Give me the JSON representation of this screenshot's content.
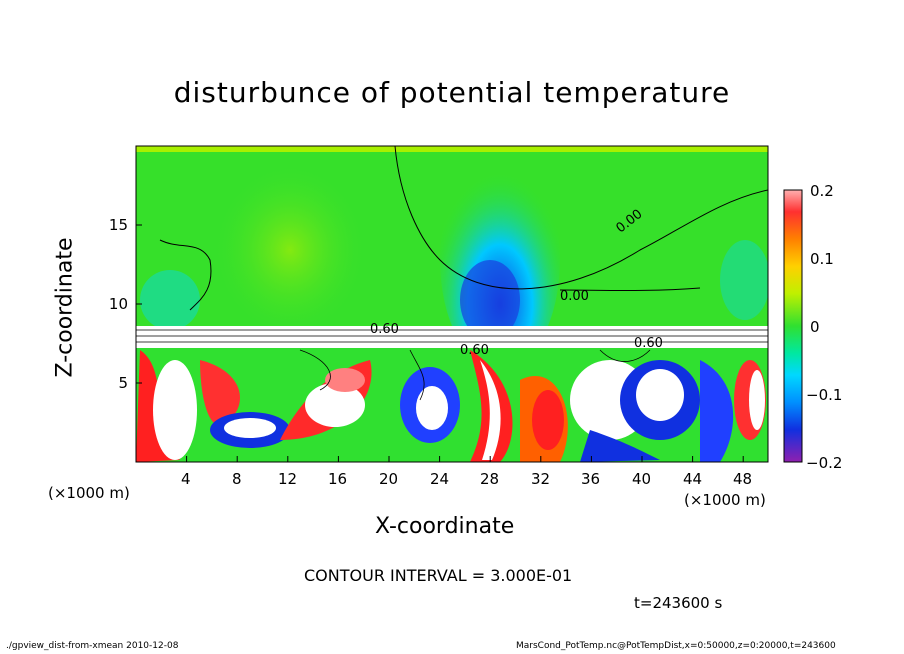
{
  "chart_data": {
    "type": "heatmap",
    "title": "disturbunce of potential temperature",
    "xlabel": "X-coordinate",
    "ylabel": "Z-coordinate",
    "x_unit_label": "(×1000 m)",
    "y_unit_label": "(×1000 m)",
    "x_ticks": [
      "4",
      "8",
      "12",
      "16",
      "20",
      "24",
      "28",
      "32",
      "36",
      "40",
      "44",
      "48"
    ],
    "y_ticks": [
      "5",
      "10",
      "15"
    ],
    "xlim": [
      0,
      50
    ],
    "ylim": [
      0,
      20
    ],
    "colorbar": {
      "ticks": [
        "0.2",
        "0.1",
        "0",
        "−0.1",
        "−0.2"
      ],
      "range": [
        -0.2,
        0.2
      ]
    },
    "contour_labels": [
      "0.00",
      "0.00",
      "0.60",
      "0.60",
      "0.60"
    ],
    "contour_interval_text": "CONTOUR INTERVAL = 3.000E-01",
    "time_text": "t=243600 s"
  },
  "footer": {
    "left": "./gpview_dist-from-xmean   2010-12-08",
    "right": "MarsCond_PotTemp.nc@PotTempDist,x=0:50000,z=0:20000,t=243600"
  },
  "colors": {
    "background_field": "#33dd22",
    "warm": "#ff2020",
    "cold": "#2030ff",
    "neutral": "#ffffff"
  }
}
